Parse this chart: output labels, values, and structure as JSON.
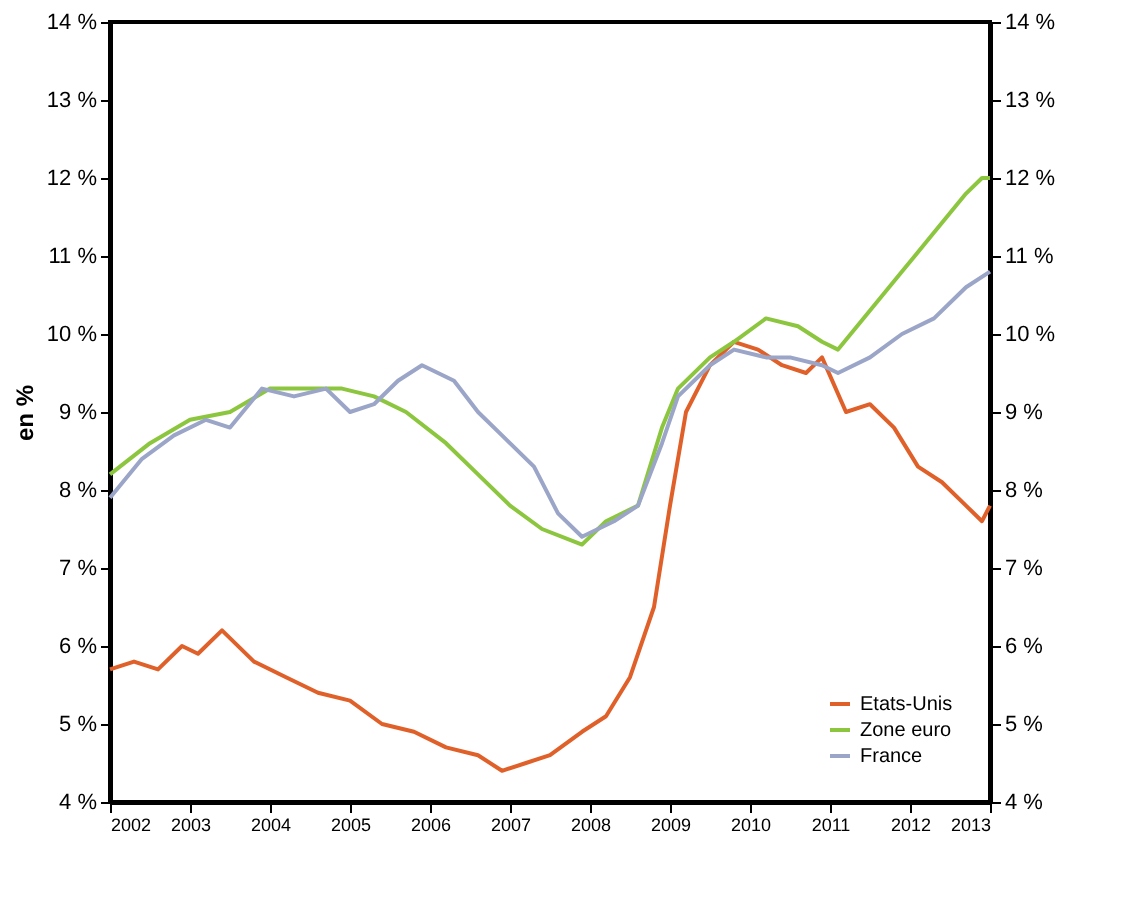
{
  "chart_data": {
    "type": "line",
    "ylabel": "en %",
    "legend": "bottom right",
    "grid": false,
    "line_style": "solid",
    "marker": "none",
    "xlim": [
      2002,
      2013
    ],
    "xticks": [
      2002,
      2003,
      2004,
      2005,
      2006,
      2007,
      2008,
      2009,
      2010,
      2011,
      2012,
      2013
    ],
    "ylim": [
      4,
      14
    ],
    "yticks": [
      {
        "value": 4,
        "label": "4 %"
      },
      {
        "value": 5,
        "label": "5 %"
      },
      {
        "value": 6,
        "label": "6 %"
      },
      {
        "value": 7,
        "label": "7 %"
      },
      {
        "value": 8,
        "label": "8 %"
      },
      {
        "value": 9,
        "label": "9 %"
      },
      {
        "value": 10,
        "label": "10 %"
      },
      {
        "value": 11,
        "label": "11 %"
      },
      {
        "value": 12,
        "label": "12 %"
      },
      {
        "value": 13,
        "label": "13 %"
      },
      {
        "value": 14,
        "label": "14 %"
      }
    ],
    "y2lim": [
      4,
      14
    ],
    "y2ticks": [
      {
        "value": 4,
        "label": "4 %"
      },
      {
        "value": 5,
        "label": "5 %"
      },
      {
        "value": 6,
        "label": "6 %"
      },
      {
        "value": 7,
        "label": "7 %"
      },
      {
        "value": 8,
        "label": "8 %"
      },
      {
        "value": 9,
        "label": "9 %"
      },
      {
        "value": 10,
        "label": "10 %"
      },
      {
        "value": 11,
        "label": "11 %"
      },
      {
        "value": 12,
        "label": "12 %"
      },
      {
        "value": 13,
        "label": "13 %"
      },
      {
        "value": 14,
        "label": "14 %"
      }
    ],
    "series": [
      {
        "name": "Etats-Unis",
        "color": "#e0602a",
        "x": [
          2002,
          2002.3,
          2002.6,
          2002.9,
          2003.1,
          2003.4,
          2003.8,
          2004.2,
          2004.6,
          2005,
          2005.4,
          2005.8,
          2006.2,
          2006.6,
          2006.9,
          2007.2,
          2007.5,
          2007.9,
          2008.2,
          2008.5,
          2008.8,
          2009,
          2009.2,
          2009.5,
          2009.8,
          2010.1,
          2010.4,
          2010.7,
          2010.9,
          2011.2,
          2011.5,
          2011.8,
          2012.1,
          2012.4,
          2012.7,
          2012.9,
          2013
        ],
        "values": [
          5.7,
          5.8,
          5.7,
          6.0,
          5.9,
          6.2,
          5.8,
          5.6,
          5.4,
          5.3,
          5.0,
          4.9,
          4.7,
          4.6,
          4.4,
          4.5,
          4.6,
          4.9,
          5.1,
          5.6,
          6.5,
          7.8,
          9.0,
          9.6,
          9.9,
          9.8,
          9.6,
          9.5,
          9.7,
          9.0,
          9.1,
          8.8,
          8.3,
          8.1,
          7.8,
          7.6,
          7.8
        ]
      },
      {
        "name": "Zone euro",
        "color": "#8cc63f",
        "x": [
          2002,
          2002.5,
          2003,
          2003.5,
          2004,
          2004.5,
          2004.9,
          2005.3,
          2005.7,
          2006.2,
          2006.6,
          2007,
          2007.4,
          2007.9,
          2008.2,
          2008.6,
          2008.9,
          2009.1,
          2009.5,
          2009.8,
          2010.2,
          2010.6,
          2010.9,
          2011.1,
          2011.5,
          2011.9,
          2012.3,
          2012.7,
          2012.9,
          2013
        ],
        "values": [
          8.2,
          8.6,
          8.9,
          9.0,
          9.3,
          9.3,
          9.3,
          9.2,
          9.0,
          8.6,
          8.2,
          7.8,
          7.5,
          7.3,
          7.6,
          7.8,
          8.8,
          9.3,
          9.7,
          9.9,
          10.2,
          10.1,
          9.9,
          9.8,
          10.3,
          10.8,
          11.3,
          11.8,
          12.0,
          12.0
        ]
      },
      {
        "name": "France",
        "color": "#9aa5c8",
        "x": [
          2002,
          2002.4,
          2002.8,
          2003.2,
          2003.5,
          2003.9,
          2004.3,
          2004.7,
          2005,
          2005.3,
          2005.6,
          2005.9,
          2006.3,
          2006.6,
          2006.9,
          2007.3,
          2007.6,
          2007.9,
          2008.3,
          2008.6,
          2008.9,
          2009.1,
          2009.5,
          2009.8,
          2010.2,
          2010.5,
          2010.9,
          2011.1,
          2011.5,
          2011.9,
          2012.3,
          2012.7,
          2013
        ],
        "values": [
          7.9,
          8.4,
          8.7,
          8.9,
          8.8,
          9.3,
          9.2,
          9.3,
          9.0,
          9.1,
          9.4,
          9.6,
          9.4,
          9.0,
          8.7,
          8.3,
          7.7,
          7.4,
          7.6,
          7.8,
          8.6,
          9.2,
          9.6,
          9.8,
          9.7,
          9.7,
          9.6,
          9.5,
          9.7,
          10.0,
          10.2,
          10.6,
          10.8
        ]
      }
    ]
  }
}
